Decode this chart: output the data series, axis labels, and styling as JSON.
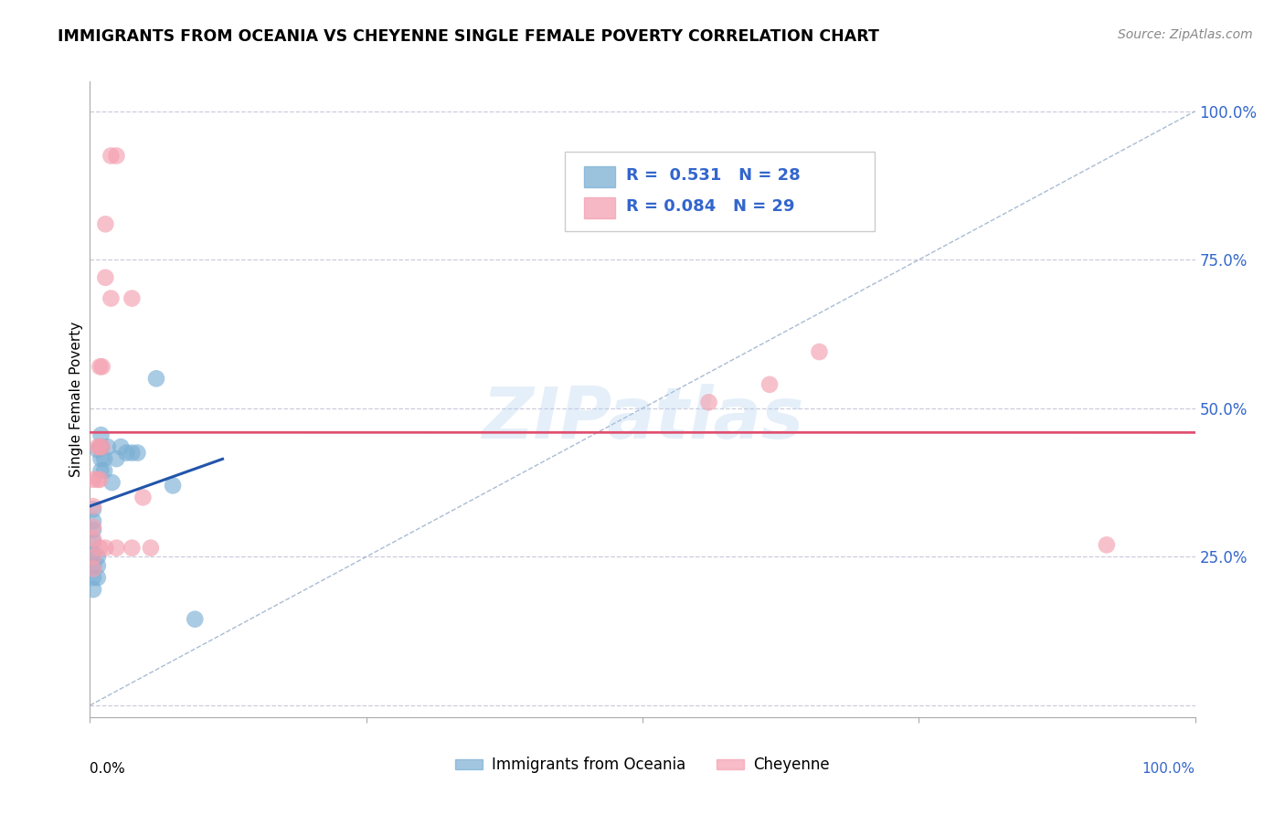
{
  "title": "IMMIGRANTS FROM OCEANIA VS CHEYENNE SINGLE FEMALE POVERTY CORRELATION CHART",
  "source": "Source: ZipAtlas.com",
  "ylabel": "Single Female Poverty",
  "legend_label1": "Immigrants from Oceania",
  "legend_label2": "Cheyenne",
  "R1": 0.531,
  "N1": 28,
  "R2": 0.084,
  "N2": 29,
  "ytick_vals": [
    0.0,
    0.25,
    0.5,
    0.75,
    1.0
  ],
  "ytick_labels": [
    "",
    "25.0%",
    "50.0%",
    "75.0%",
    "100.0%"
  ],
  "xlim": [
    0.0,
    1.0
  ],
  "ylim": [
    -0.02,
    1.05
  ],
  "blue_color": "#7BAFD4",
  "pink_color": "#F4A0B0",
  "blue_line_color": "#2255AA",
  "pink_line_color": "#E05070",
  "diag_line_color": "#AABBD4",
  "background_color": "#FFFFFF",
  "grid_color": "#CCCCDD",
  "watermark": "ZIPatlas",
  "blue_dots": [
    [
      0.003,
      0.195
    ],
    [
      0.003,
      0.215
    ],
    [
      0.003,
      0.235
    ],
    [
      0.003,
      0.255
    ],
    [
      0.003,
      0.275
    ],
    [
      0.003,
      0.295
    ],
    [
      0.003,
      0.31
    ],
    [
      0.003,
      0.33
    ],
    [
      0.007,
      0.215
    ],
    [
      0.007,
      0.235
    ],
    [
      0.007,
      0.25
    ],
    [
      0.01,
      0.395
    ],
    [
      0.01,
      0.415
    ],
    [
      0.01,
      0.435
    ],
    [
      0.01,
      0.455
    ],
    [
      0.013,
      0.395
    ],
    [
      0.013,
      0.415
    ],
    [
      0.016,
      0.435
    ],
    [
      0.02,
      0.375
    ],
    [
      0.024,
      0.415
    ],
    [
      0.028,
      0.435
    ],
    [
      0.033,
      0.425
    ],
    [
      0.038,
      0.425
    ],
    [
      0.043,
      0.425
    ],
    [
      0.06,
      0.55
    ],
    [
      0.075,
      0.37
    ],
    [
      0.095,
      0.145
    ],
    [
      0.007,
      0.43
    ]
  ],
  "pink_dots": [
    [
      0.019,
      0.925
    ],
    [
      0.024,
      0.925
    ],
    [
      0.014,
      0.81
    ],
    [
      0.014,
      0.72
    ],
    [
      0.019,
      0.685
    ],
    [
      0.038,
      0.685
    ],
    [
      0.009,
      0.57
    ],
    [
      0.011,
      0.57
    ],
    [
      0.007,
      0.435
    ],
    [
      0.009,
      0.435
    ],
    [
      0.011,
      0.435
    ],
    [
      0.003,
      0.38
    ],
    [
      0.007,
      0.38
    ],
    [
      0.009,
      0.38
    ],
    [
      0.003,
      0.335
    ],
    [
      0.003,
      0.3
    ],
    [
      0.003,
      0.28
    ],
    [
      0.003,
      0.25
    ],
    [
      0.003,
      0.23
    ],
    [
      0.009,
      0.265
    ],
    [
      0.014,
      0.265
    ],
    [
      0.024,
      0.265
    ],
    [
      0.038,
      0.265
    ],
    [
      0.048,
      0.35
    ],
    [
      0.055,
      0.265
    ],
    [
      0.56,
      0.51
    ],
    [
      0.615,
      0.54
    ],
    [
      0.66,
      0.595
    ],
    [
      0.92,
      0.27
    ]
  ]
}
